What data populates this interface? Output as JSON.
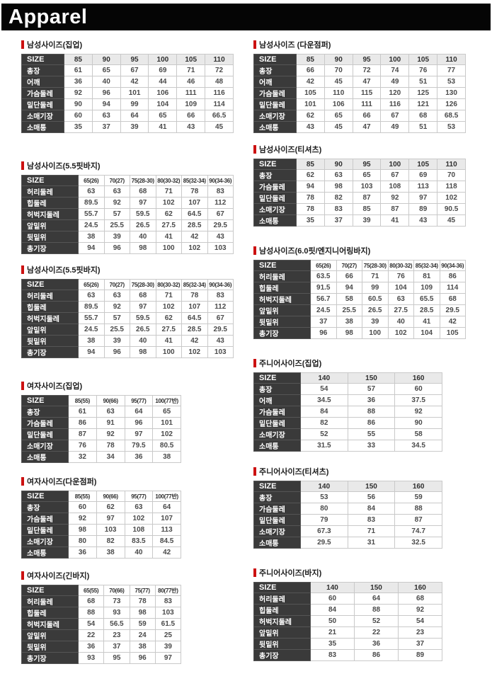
{
  "page": {
    "header_title": "Apparel"
  },
  "colors": {
    "header_bg": "#050505",
    "title_marker_red": "#cc1111",
    "table_label_bg": "#3a3a3a",
    "size_header_bg": "#e9e9e9",
    "table_border": "#c9c9c9"
  },
  "size_label": "SIZE",
  "tables": {
    "left": [
      {
        "title": "남성사이즈(집업)",
        "size_header": [
          "85",
          "90",
          "95",
          "100",
          "105",
          "110"
        ],
        "rows": [
          {
            "label": "총장",
            "values": [
              "61",
              "65",
              "67",
              "69",
              "71",
              "72"
            ]
          },
          {
            "label": "어깨",
            "values": [
              "36",
              "40",
              "42",
              "44",
              "46",
              "48"
            ]
          },
          {
            "label": "가슴둘레",
            "values": [
              "92",
              "96",
              "101",
              "106",
              "111",
              "116"
            ]
          },
          {
            "label": "밑단둘레",
            "values": [
              "90",
              "94",
              "99",
              "104",
              "109",
              "114"
            ]
          },
          {
            "label": "소매기장",
            "values": [
              "60",
              "63",
              "64",
              "65",
              "66",
              "66.5"
            ]
          },
          {
            "label": "소매통",
            "values": [
              "35",
              "37",
              "39",
              "41",
              "43",
              "45"
            ]
          }
        ]
      },
      {
        "title": "남성사이즈(5.5핏바지)",
        "size_header": [
          "65(26)",
          "70(27)",
          "75(28-30)",
          "80(30-32)",
          "85(32-34)",
          "90(34-36)"
        ],
        "rows": [
          {
            "label": "허리둘레",
            "values": [
              "63",
              "63",
              "68",
              "71",
              "78",
              "83"
            ]
          },
          {
            "label": "힙둘레",
            "values": [
              "89.5",
              "92",
              "97",
              "102",
              "107",
              "112"
            ]
          },
          {
            "label": "허벅지둘레",
            "values": [
              "55.7",
              "57",
              "59.5",
              "62",
              "64.5",
              "67"
            ]
          },
          {
            "label": "앞밑위",
            "values": [
              "24.5",
              "25.5",
              "26.5",
              "27.5",
              "28.5",
              "29.5"
            ]
          },
          {
            "label": "뒷밑위",
            "values": [
              "38",
              "39",
              "40",
              "41",
              "42",
              "43"
            ]
          },
          {
            "label": "총기장",
            "values": [
              "94",
              "96",
              "98",
              "100",
              "102",
              "103"
            ]
          }
        ]
      },
      {
        "title": "남성사이즈(5.5핏바지)",
        "size_header": [
          "65(26)",
          "70(27)",
          "75(28-30)",
          "80(30-32)",
          "85(32-34)",
          "90(34-36)"
        ],
        "rows": [
          {
            "label": "허리둘레",
            "values": [
              "63",
              "63",
              "68",
              "71",
              "78",
              "83"
            ]
          },
          {
            "label": "힙둘레",
            "values": [
              "89.5",
              "92",
              "97",
              "102",
              "107",
              "112"
            ]
          },
          {
            "label": "허벅지둘레",
            "values": [
              "55.7",
              "57",
              "59.5",
              "62",
              "64.5",
              "67"
            ]
          },
          {
            "label": "앞밑위",
            "values": [
              "24.5",
              "25.5",
              "26.5",
              "27.5",
              "28.5",
              "29.5"
            ]
          },
          {
            "label": "뒷밑위",
            "values": [
              "38",
              "39",
              "40",
              "41",
              "42",
              "43"
            ]
          },
          {
            "label": "총기장",
            "values": [
              "94",
              "96",
              "98",
              "100",
              "102",
              "103"
            ]
          }
        ]
      },
      {
        "title": "여자사이즈(집업)",
        "size_header": [
          "85(55)",
          "90(66)",
          "95(77)",
          "100(77반)"
        ],
        "rows": [
          {
            "label": "총장",
            "values": [
              "61",
              "63",
              "64",
              "65"
            ]
          },
          {
            "label": "가슴둘레",
            "values": [
              "86",
              "91",
              "96",
              "101"
            ]
          },
          {
            "label": "밑단둘레",
            "values": [
              "87",
              "92",
              "97",
              "102"
            ]
          },
          {
            "label": "소매기장",
            "values": [
              "76",
              "78",
              "79.5",
              "80.5"
            ]
          },
          {
            "label": "소매통",
            "values": [
              "32",
              "34",
              "36",
              "38"
            ]
          }
        ]
      },
      {
        "title": "여자사이즈(다운점퍼)",
        "size_header": [
          "85(55)",
          "90(66)",
          "95(77)",
          "100(77반)"
        ],
        "rows": [
          {
            "label": "총장",
            "values": [
              "60",
              "62",
              "63",
              "64"
            ]
          },
          {
            "label": "가슴둘레",
            "values": [
              "92",
              "97",
              "102",
              "107"
            ]
          },
          {
            "label": "밑단둘레",
            "values": [
              "98",
              "103",
              "108",
              "113"
            ]
          },
          {
            "label": "소매기장",
            "values": [
              "80",
              "82",
              "83.5",
              "84.5"
            ]
          },
          {
            "label": "소매통",
            "values": [
              "36",
              "38",
              "40",
              "42"
            ]
          }
        ]
      },
      {
        "title": "여자사이즈(긴바지)",
        "size_header": [
          "65(55)",
          "70(66)",
          "75(77)",
          "80(77반)"
        ],
        "rows": [
          {
            "label": "허리둘레",
            "values": [
              "68",
              "73",
              "78",
              "83"
            ]
          },
          {
            "label": "힙둘레",
            "values": [
              "88",
              "93",
              "98",
              "103"
            ]
          },
          {
            "label": "허벅지둘레",
            "values": [
              "54",
              "56.5",
              "59",
              "61.5"
            ]
          },
          {
            "label": "앞밑위",
            "values": [
              "22",
              "23",
              "24",
              "25"
            ]
          },
          {
            "label": "뒷밑위",
            "values": [
              "36",
              "37",
              "38",
              "39"
            ]
          },
          {
            "label": "총기장",
            "values": [
              "93",
              "95",
              "96",
              "97"
            ]
          }
        ]
      }
    ],
    "right": [
      {
        "title": "남성사이즈 (다운점퍼)",
        "size_header": [
          "85",
          "90",
          "95",
          "100",
          "105",
          "110"
        ],
        "rows": [
          {
            "label": "총장",
            "values": [
              "66",
              "70",
              "72",
              "74",
              "76",
              "77"
            ]
          },
          {
            "label": "어깨",
            "values": [
              "42",
              "45",
              "47",
              "49",
              "51",
              "53"
            ]
          },
          {
            "label": "가슴둘레",
            "values": [
              "105",
              "110",
              "115",
              "120",
              "125",
              "130"
            ]
          },
          {
            "label": "밑단둘레",
            "values": [
              "101",
              "106",
              "111",
              "116",
              "121",
              "126"
            ]
          },
          {
            "label": "소매기장",
            "values": [
              "62",
              "65",
              "66",
              "67",
              "68",
              "68.5"
            ]
          },
          {
            "label": "소매통",
            "values": [
              "43",
              "45",
              "47",
              "49",
              "51",
              "53"
            ]
          }
        ]
      },
      {
        "title": "남성사이즈(티셔츠)",
        "size_header": [
          "85",
          "90",
          "95",
          "100",
          "105",
          "110"
        ],
        "rows": [
          {
            "label": "총장",
            "values": [
              "62",
              "63",
              "65",
              "67",
              "69",
              "70"
            ]
          },
          {
            "label": "가슴둘레",
            "values": [
              "94",
              "98",
              "103",
              "108",
              "113",
              "118"
            ]
          },
          {
            "label": "밑단둘레",
            "values": [
              "78",
              "82",
              "87",
              "92",
              "97",
              "102"
            ]
          },
          {
            "label": "소매기장",
            "values": [
              "78",
              "83",
              "85",
              "87",
              "89",
              "90.5"
            ]
          },
          {
            "label": "소매통",
            "values": [
              "35",
              "37",
              "39",
              "41",
              "43",
              "45"
            ]
          }
        ]
      },
      {
        "title": "남성사이즈(6.0핏/엔지니어링바지)",
        "size_header": [
          "65(26)",
          "70(27)",
          "75(28-30)",
          "80(30-32)",
          "85(32-34)",
          "90(34-36)"
        ],
        "rows": [
          {
            "label": "허리둘레",
            "values": [
              "63.5",
              "66",
              "71",
              "76",
              "81",
              "86"
            ]
          },
          {
            "label": "힙둘레",
            "values": [
              "91.5",
              "94",
              "99",
              "104",
              "109",
              "114"
            ]
          },
          {
            "label": "허벅지둘레",
            "values": [
              "56.7",
              "58",
              "60.5",
              "63",
              "65.5",
              "68"
            ]
          },
          {
            "label": "앞밑위",
            "values": [
              "24.5",
              "25.5",
              "26.5",
              "27.5",
              "28.5",
              "29.5"
            ]
          },
          {
            "label": "뒷밑위",
            "values": [
              "37",
              "38",
              "39",
              "40",
              "41",
              "42"
            ]
          },
          {
            "label": "총기장",
            "values": [
              "96",
              "98",
              "100",
              "102",
              "104",
              "105"
            ]
          }
        ]
      },
      {
        "title": "주니어사이즈(집업)",
        "size_header": [
          "140",
          "150",
          "160"
        ],
        "rows": [
          {
            "label": "총장",
            "values": [
              "54",
              "57",
              "60"
            ]
          },
          {
            "label": "어깨",
            "values": [
              "34.5",
              "36",
              "37.5"
            ]
          },
          {
            "label": "가슴둘레",
            "values": [
              "84",
              "88",
              "92"
            ]
          },
          {
            "label": "밑단둘레",
            "values": [
              "82",
              "86",
              "90"
            ]
          },
          {
            "label": "소매기장",
            "values": [
              "52",
              "55",
              "58"
            ]
          },
          {
            "label": "소매통",
            "values": [
              "31.5",
              "33",
              "34.5"
            ]
          }
        ]
      },
      {
        "title": "주니어사이즈(티셔츠)",
        "size_header": [
          "140",
          "150",
          "160"
        ],
        "rows": [
          {
            "label": "총장",
            "values": [
              "53",
              "56",
              "59"
            ]
          },
          {
            "label": "가슴둘레",
            "values": [
              "80",
              "84",
              "88"
            ]
          },
          {
            "label": "밑단둘레",
            "values": [
              "79",
              "83",
              "87"
            ]
          },
          {
            "label": "소매기장",
            "values": [
              "67.3",
              "71",
              "74.7"
            ]
          },
          {
            "label": "소매통",
            "values": [
              "29.5",
              "31",
              "32.5"
            ]
          }
        ]
      },
      {
        "title": "주니어사이즈(바지)",
        "size_header": [
          "140",
          "150",
          "160"
        ],
        "rows": [
          {
            "label": "허리둘레",
            "values": [
              "60",
              "64",
              "68"
            ]
          },
          {
            "label": "힙둘레",
            "values": [
              "84",
              "88",
              "92"
            ]
          },
          {
            "label": "허벅지둘레",
            "values": [
              "50",
              "52",
              "54"
            ]
          },
          {
            "label": "앞밑위",
            "values": [
              "21",
              "22",
              "23"
            ]
          },
          {
            "label": "뒷밑위",
            "values": [
              "35",
              "36",
              "37"
            ]
          },
          {
            "label": "총기장",
            "values": [
              "83",
              "86",
              "89"
            ]
          }
        ]
      }
    ]
  }
}
